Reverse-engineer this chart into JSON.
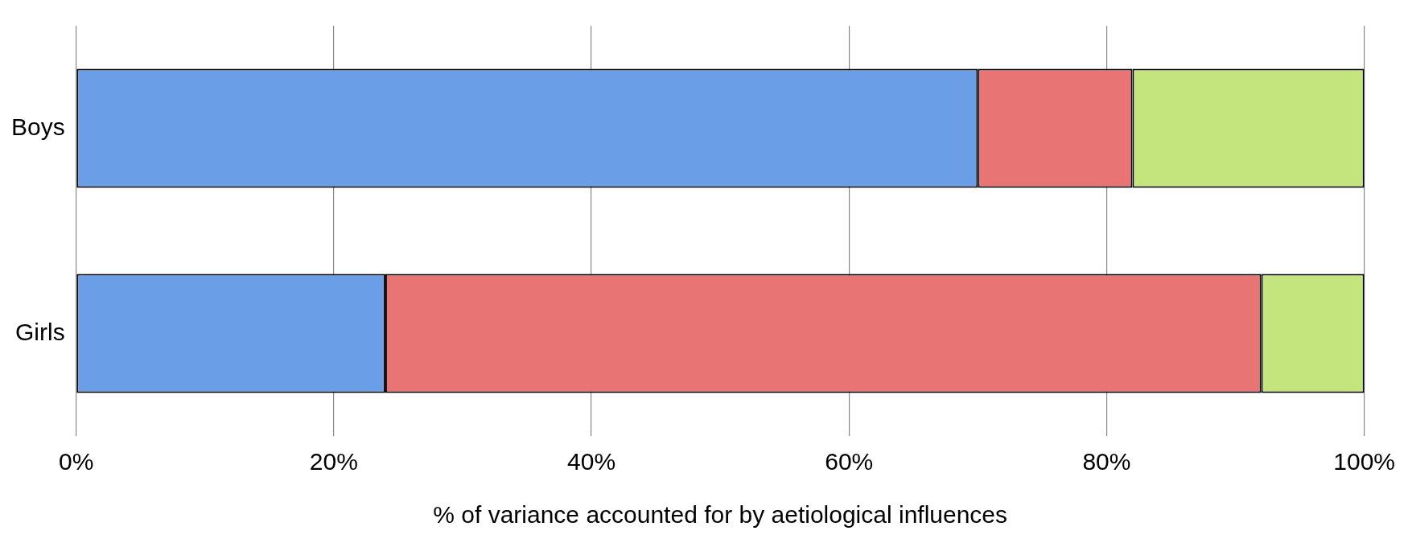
{
  "chart_data": {
    "type": "bar",
    "orientation": "horizontal",
    "stacked": true,
    "xlabel": "% of variance accounted for by aetiological influences",
    "categories": [
      "Boys",
      "Girls"
    ],
    "series": [
      {
        "color": "#6a9fe8",
        "values": [
          70,
          24
        ]
      },
      {
        "color": "#e87474",
        "values": [
          12,
          68
        ]
      },
      {
        "color": "#c4e57e",
        "values": [
          18,
          8
        ]
      }
    ],
    "xlim": [
      0,
      100
    ],
    "xticks": [
      {
        "value": 0,
        "label": "0%"
      },
      {
        "value": 20,
        "label": "20%"
      },
      {
        "value": 40,
        "label": "40%"
      },
      {
        "value": 60,
        "label": "60%"
      },
      {
        "value": 80,
        "label": "80%"
      },
      {
        "value": 100,
        "label": "100%"
      }
    ],
    "grid": "x",
    "legend": false
  }
}
